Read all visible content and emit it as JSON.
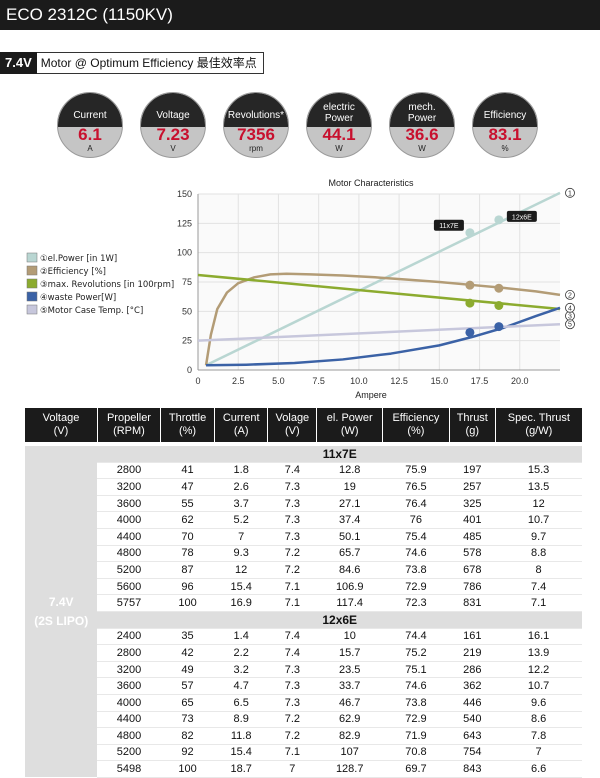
{
  "header": {
    "title": "ECO 2312C (1150KV)"
  },
  "subheader": {
    "voltage": "7.4V",
    "label": "Motor @ Optimum Efficiency  最佳效率点"
  },
  "gauges": [
    {
      "label1": "Current",
      "label2": "",
      "value": "6.1",
      "unit": "A"
    },
    {
      "label1": "Voltage",
      "label2": "",
      "value": "7.23",
      "unit": "V"
    },
    {
      "label1": "Revolutions*",
      "label2": "",
      "value": "7356",
      "unit": "rpm"
    },
    {
      "label1": "electric",
      "label2": "Power",
      "value": "44.1",
      "unit": "W"
    },
    {
      "label1": "mech.",
      "label2": "Power",
      "value": "36.6",
      "unit": "W"
    },
    {
      "label1": "Efficiency",
      "label2": "",
      "value": "83.1",
      "unit": "%"
    }
  ],
  "chart_data": {
    "type": "line",
    "title": "Motor Characteristics",
    "xlabel": "Ampere",
    "ylabel": "",
    "xlim": [
      0,
      22.5
    ],
    "ylim": [
      0,
      150
    ],
    "xticks": [
      "0",
      "2.5",
      "5.0",
      "7.5",
      "10.0",
      "12.5",
      "15.0",
      "17.5",
      "20.0"
    ],
    "yticks": [
      "0",
      "25",
      "50",
      "75",
      "100",
      "125",
      "150"
    ],
    "grid": true,
    "legend_position": "left",
    "series": [
      {
        "name": "①el.Power [in 1W]",
        "end_label": "①",
        "color": "#b9d6d2",
        "x": [
          0.5,
          22.5
        ],
        "y": [
          4,
          151
        ]
      },
      {
        "name": "②Efficiency [%]",
        "end_label": "②",
        "color": "#b39c76",
        "x": [
          0.5,
          0.8,
          1.2,
          1.8,
          2.5,
          3.5,
          4.5,
          5.5,
          7.0,
          9.0,
          11.0,
          13.0,
          15.0,
          17.0,
          19.0,
          21.0,
          22.5
        ],
        "y": [
          4,
          30,
          52,
          66,
          74,
          79,
          81.5,
          82,
          81.5,
          80.5,
          79,
          77,
          75,
          72.5,
          70,
          67,
          64
        ]
      },
      {
        "name": "③max. Revolutions [in 100rpm]",
        "end_label": "③",
        "color": "#8cab2f",
        "x": [
          0,
          22.5
        ],
        "y": [
          81,
          52
        ]
      },
      {
        "name": "④waste Power[W]",
        "end_label": "④",
        "color": "#3b62a6",
        "x": [
          0.5,
          3,
          6,
          9,
          12,
          15,
          17,
          19,
          21,
          22.5
        ],
        "y": [
          4,
          4.5,
          6,
          9,
          14,
          21,
          28,
          36,
          46,
          53
        ]
      },
      {
        "name": "⑤Motor Case Temp. [°C]",
        "end_label": "⑤",
        "color": "#c7c7dc",
        "x": [
          0,
          22.5
        ],
        "y": [
          25,
          39
        ]
      }
    ],
    "markers": [
      {
        "label": "11x7E",
        "x": 16.9,
        "values": [
          117,
          72.3,
          57,
          32,
          34
        ]
      },
      {
        "label": "12x6E",
        "x": 18.7,
        "values": [
          128,
          69.7,
          55,
          37,
          35
        ]
      }
    ]
  },
  "table": {
    "headers": [
      "Voltage\n(V)",
      "Propeller\n(RPM)",
      "Throttle\n(%)",
      "Current\n(A)",
      "Volage\n(V)",
      "el. Power\n(W)",
      "Efficiency\n(%)",
      "Thrust\n(g)",
      "Spec. Thrust\n(g/W)"
    ],
    "side_label": "7.4V\n(2S LIPO)",
    "groups": [
      {
        "name": "11x7E",
        "rows": [
          [
            "2800",
            "41",
            "1.8",
            "7.4",
            "12.8",
            "75.9",
            "197",
            "15.3"
          ],
          [
            "3200",
            "47",
            "2.6",
            "7.3",
            "19",
            "76.5",
            "257",
            "13.5"
          ],
          [
            "3600",
            "55",
            "3.7",
            "7.3",
            "27.1",
            "76.4",
            "325",
            "12"
          ],
          [
            "4000",
            "62",
            "5.2",
            "7.3",
            "37.4",
            "76",
            "401",
            "10.7"
          ],
          [
            "4400",
            "70",
            "7",
            "7.3",
            "50.1",
            "75.4",
            "485",
            "9.7"
          ],
          [
            "4800",
            "78",
            "9.3",
            "7.2",
            "65.7",
            "74.6",
            "578",
            "8.8"
          ],
          [
            "5200",
            "87",
            "12",
            "7.2",
            "84.6",
            "73.8",
            "678",
            "8"
          ],
          [
            "5600",
            "96",
            "15.4",
            "7.1",
            "106.9",
            "72.9",
            "786",
            "7.4"
          ],
          [
            "5757",
            "100",
            "16.9",
            "7.1",
            "117.4",
            "72.3",
            "831",
            "7.1"
          ]
        ]
      },
      {
        "name": "12x6E",
        "rows": [
          [
            "2400",
            "35",
            "1.4",
            "7.4",
            "10",
            "74.4",
            "161",
            "16.1"
          ],
          [
            "2800",
            "42",
            "2.2",
            "7.4",
            "15.7",
            "75.2",
            "219",
            "13.9"
          ],
          [
            "3200",
            "49",
            "3.2",
            "7.3",
            "23.5",
            "75.1",
            "286",
            "12.2"
          ],
          [
            "3600",
            "57",
            "4.7",
            "7.3",
            "33.7",
            "74.6",
            "362",
            "10.7"
          ],
          [
            "4000",
            "65",
            "6.5",
            "7.3",
            "46.7",
            "73.8",
            "446",
            "9.6"
          ],
          [
            "4400",
            "73",
            "8.9",
            "7.2",
            "62.9",
            "72.9",
            "540",
            "8.6"
          ],
          [
            "4800",
            "82",
            "11.8",
            "7.2",
            "82.9",
            "71.9",
            "643",
            "7.8"
          ],
          [
            "5200",
            "92",
            "15.4",
            "7.1",
            "107",
            "70.8",
            "754",
            "7"
          ],
          [
            "5498",
            "100",
            "18.7",
            "7",
            "128.7",
            "69.7",
            "843",
            "6.6"
          ]
        ]
      }
    ]
  }
}
